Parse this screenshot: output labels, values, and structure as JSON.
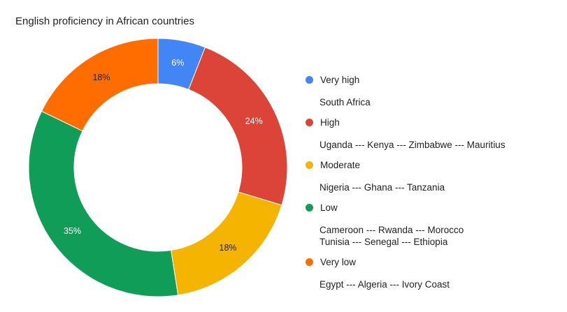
{
  "chart_data": {
    "type": "pie",
    "donut": true,
    "title": "English proficiency in African countries",
    "legend_position": "right",
    "slices": [
      {
        "name": "Very high",
        "value": 6,
        "label": "6%",
        "color": "#4285f4",
        "label_color": "#ffffff",
        "countries": [
          "South Africa"
        ]
      },
      {
        "name": "High",
        "value": 24,
        "label": "24%",
        "color": "#db4437",
        "label_color": "#ffffff",
        "countries": [
          "Uganda --- Kenya --- Zimbabwe --- Mauritius"
        ]
      },
      {
        "name": "Moderate",
        "value": 18,
        "label": "18%",
        "color": "#f4b400",
        "label_color": "#222222",
        "countries": [
          "Nigeria --- Ghana --- Tanzania"
        ]
      },
      {
        "name": "Low",
        "value": 35,
        "label": "35%",
        "color": "#0f9d58",
        "label_color": "#ffffff",
        "countries": [
          "Cameroon --- Rwanda --- Morocco",
          "Tunisia --- Senegal --- Ethiopia"
        ]
      },
      {
        "name": "Very low",
        "value": 18,
        "label": "18%",
        "color": "#ff6d01",
        "label_color": "#222222",
        "countries": [
          "Egypt --- Algeria --- Ivory Coast"
        ]
      }
    ]
  }
}
